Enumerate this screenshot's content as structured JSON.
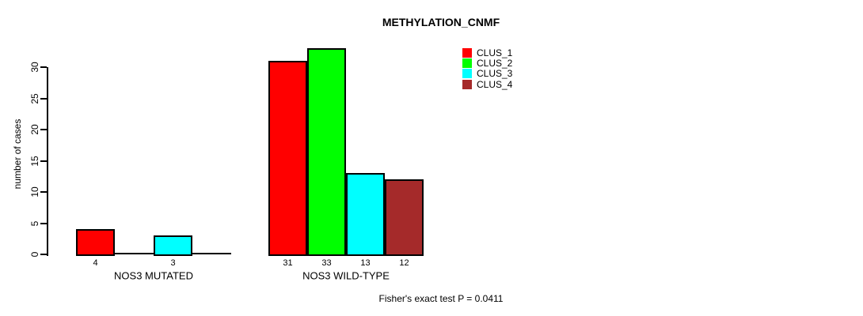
{
  "title": "METHYLATION_CNMF",
  "chart_data": {
    "type": "bar",
    "title": "METHYLATION_CNMF",
    "xlabel": "",
    "ylabel": "number of cases",
    "ylim": [
      0,
      30
    ],
    "yticks": [
      0,
      5,
      10,
      15,
      20,
      25,
      30
    ],
    "grid": false,
    "legend_position": "top-right",
    "categories": [
      "NOS3 MUTATED",
      "NOS3 WILD-TYPE"
    ],
    "series": [
      {
        "name": "CLUS_1",
        "color": "#FF0000",
        "values": [
          4,
          31
        ]
      },
      {
        "name": "CLUS_2",
        "color": "#00FF00",
        "values": [
          0,
          33
        ]
      },
      {
        "name": "CLUS_3",
        "color": "#00FFFF",
        "values": [
          3,
          13
        ]
      },
      {
        "name": "CLUS_4",
        "color": "#A52A2A",
        "values": [
          0,
          12
        ]
      }
    ],
    "bar_value_labels": [
      [
        4,
        3
      ],
      [
        31,
        33,
        13,
        12
      ]
    ],
    "footer": "Fisher's exact test P = 0.0411",
    "axis_color": "#000000",
    "background_color": "#FFFFFF"
  }
}
